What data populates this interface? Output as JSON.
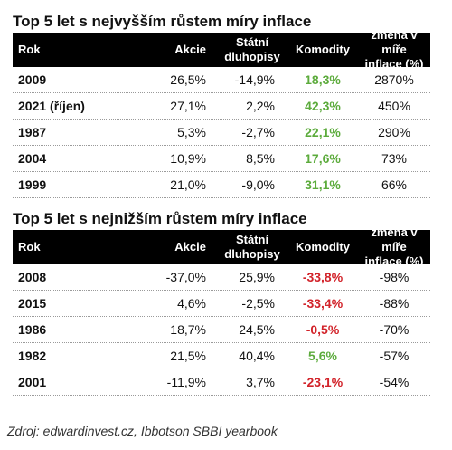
{
  "tables": [
    {
      "title": "Top 5 let s nejvyšším růstem míry inflace",
      "headers": {
        "rok": "Rok",
        "akcie": "Akcie",
        "statni_1": "Státní",
        "statni_2": "dluhopisy",
        "komodity": "Komodity",
        "zmena_1": "změna v míře",
        "zmena_2": "inflace (%)"
      },
      "rows": [
        {
          "rok": "2009",
          "akcie": "26,5%",
          "statni": "-14,9%",
          "komodity": "18,3%",
          "zmena": "2870%"
        },
        {
          "rok": "2021 (říjen)",
          "akcie": "27,1%",
          "statni": "2,2%",
          "komodity": "42,3%",
          "zmena": "450%"
        },
        {
          "rok": "1987",
          "akcie": "5,3%",
          "statni": "-2,7%",
          "komodity": "22,1%",
          "zmena": "290%"
        },
        {
          "rok": "2004",
          "akcie": "10,9%",
          "statni": "8,5%",
          "komodity": "17,6%",
          "zmena": "73%"
        },
        {
          "rok": "1999",
          "akcie": "21,0%",
          "statni": "-9,0%",
          "komodity": "31,1%",
          "zmena": "66%"
        }
      ]
    },
    {
      "title": "Top 5 let s nejnižším růstem míry inflace",
      "headers": {
        "rok": "Rok",
        "akcie": "Akcie",
        "statni_1": "Státní",
        "statni_2": "dluhopisy",
        "komodity": "Komodity",
        "zmena_1": "změna v míře",
        "zmena_2": "inflace (%)"
      },
      "rows": [
        {
          "rok": "2008",
          "akcie": "-37,0%",
          "statni": "25,9%",
          "komodity": "-33,8%",
          "zmena": "-98%"
        },
        {
          "rok": "2015",
          "akcie": "4,6%",
          "statni": "-2,5%",
          "komodity": "-33,4%",
          "zmena": "-88%"
        },
        {
          "rok": "1986",
          "akcie": "18,7%",
          "statni": "24,5%",
          "komodity": "-0,5%",
          "zmena": "-70%"
        },
        {
          "rok": "1982",
          "akcie": "21,5%",
          "statni": "40,4%",
          "komodity": "5,6%",
          "zmena": "-57%"
        },
        {
          "rok": "2001",
          "akcie": "-11,9%",
          "statni": "3,7%",
          "komodity": "-23,1%",
          "zmena": "-54%"
        }
      ]
    }
  ],
  "colors": {
    "positive": "#5cab3c",
    "negative": "#d2232a",
    "header_bg": "#000000"
  },
  "source": "Zdroj: edwardinvest.cz, Ibbotson SBBI yearbook"
}
